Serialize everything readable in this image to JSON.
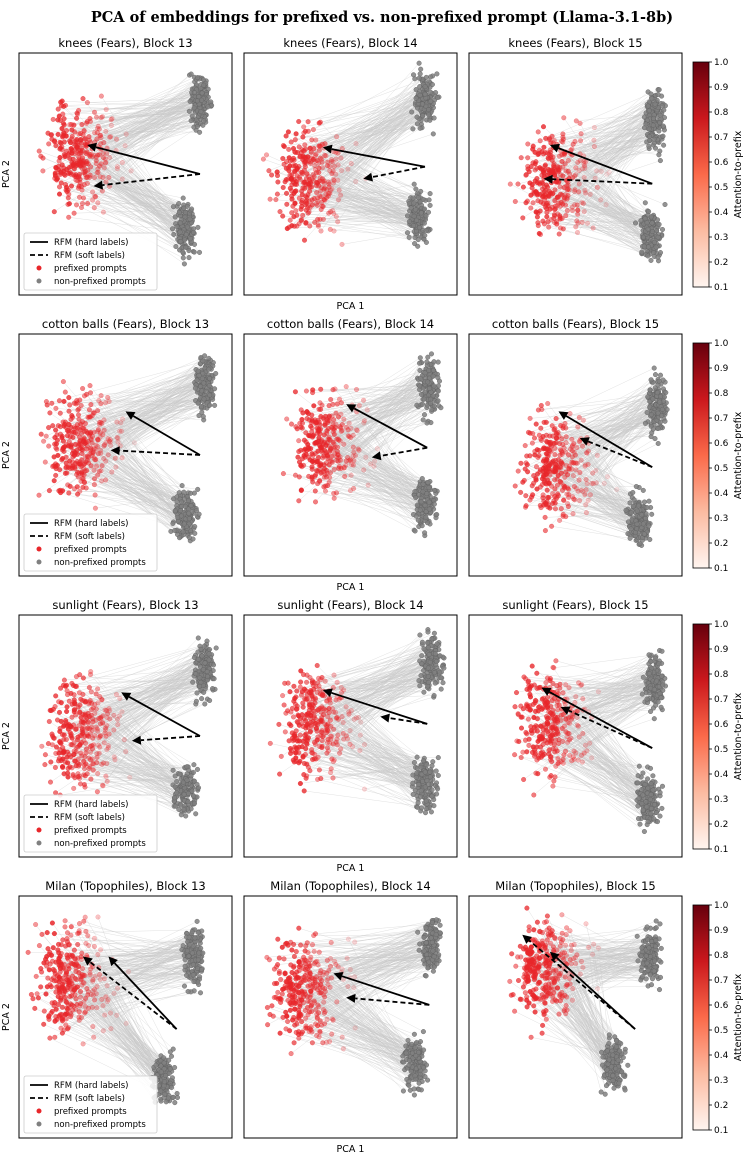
{
  "figure": {
    "title": "PCA of embeddings for prefixed vs. non-prefixed prompt (Llama-3.1-8b)"
  },
  "legend": {
    "hard_label": "RFM (hard labels)",
    "soft_label": "RFM (soft labels)",
    "prefixed_label": "prefixed prompts",
    "nonprefixed_label": "non-prefixed prompts"
  },
  "colorbar": {
    "label": "Attention-to-prefix",
    "ticks": [
      "0.1",
      "0.2",
      "0.3",
      "0.4",
      "0.5",
      "0.6",
      "0.7",
      "0.8",
      "0.9",
      "1.0"
    ],
    "range": [
      0.1,
      1.0
    ],
    "colors": [
      "#fff5f0",
      "#fcbba1",
      "#fb6a4a",
      "#cb181d",
      "#67000d"
    ]
  },
  "chart_data": [
    {
      "row": 0,
      "type": "scatter",
      "xlabel": "PCA 1",
      "ylabel": "PCA 2",
      "colors": {
        "prefixed": "#e8262a",
        "nonprefixed": "#808080",
        "pair_lines": "#c8c8c8",
        "arrows": "#000000"
      },
      "panels": [
        {
          "title": "knees (Fears), Block 13",
          "prefixed_center": [
            0.2,
            0.42
          ],
          "nonprefixed_upper": [
            0.85,
            0.2
          ],
          "nonprefixed_lower": [
            0.78,
            0.73
          ],
          "rfm_hard": {
            "from": [
              0.85,
              0.5
            ],
            "to": [
              0.32,
              0.38
            ]
          },
          "rfm_soft": {
            "from": [
              0.85,
              0.5
            ],
            "to": [
              0.35,
              0.55
            ]
          }
        },
        {
          "title": "knees (Fears), Block 14",
          "prefixed_center": [
            0.22,
            0.52
          ],
          "nonprefixed_upper": [
            0.85,
            0.2
          ],
          "nonprefixed_lower": [
            0.82,
            0.68
          ],
          "rfm_hard": {
            "from": [
              0.85,
              0.47
            ],
            "to": [
              0.37,
              0.39
            ]
          },
          "rfm_soft": {
            "from": [
              0.85,
              0.47
            ],
            "to": [
              0.56,
              0.52
            ]
          }
        },
        {
          "title": "knees (Fears), Block 15",
          "prefixed_center": [
            0.32,
            0.52
          ],
          "nonprefixed_upper": [
            0.87,
            0.28
          ],
          "nonprefixed_lower": [
            0.85,
            0.75
          ],
          "rfm_hard": {
            "from": [
              0.86,
              0.54
            ],
            "to": [
              0.38,
              0.38
            ]
          },
          "rfm_soft": {
            "from": [
              0.86,
              0.54
            ],
            "to": [
              0.35,
              0.52
            ]
          }
        }
      ]
    },
    {
      "row": 1,
      "type": "scatter",
      "xlabel": "PCA 1",
      "ylabel": "PCA 2",
      "colors": {
        "prefixed": "#e8262a",
        "nonprefixed": "#808080",
        "pair_lines": "#c8c8c8",
        "arrows": "#000000"
      },
      "panels": [
        {
          "title": "cotton balls (Fears), Block 13",
          "prefixed_center": [
            0.2,
            0.45
          ],
          "nonprefixed_upper": [
            0.87,
            0.22
          ],
          "nonprefixed_lower": [
            0.78,
            0.75
          ],
          "rfm_hard": {
            "from": [
              0.85,
              0.5
            ],
            "to": [
              0.5,
              0.32
            ]
          },
          "rfm_soft": {
            "from": [
              0.85,
              0.5
            ],
            "to": [
              0.43,
              0.48
            ]
          }
        },
        {
          "title": "cotton balls (Fears), Block 14",
          "prefixed_center": [
            0.3,
            0.45
          ],
          "nonprefixed_upper": [
            0.87,
            0.22
          ],
          "nonprefixed_lower": [
            0.85,
            0.7
          ],
          "rfm_hard": {
            "from": [
              0.86,
              0.47
            ],
            "to": [
              0.48,
              0.29
            ]
          },
          "rfm_soft": {
            "from": [
              0.86,
              0.47
            ],
            "to": [
              0.6,
              0.51
            ]
          }
        },
        {
          "title": "cotton balls (Fears), Block 15",
          "prefixed_center": [
            0.32,
            0.55
          ],
          "nonprefixed_upper": [
            0.88,
            0.3
          ],
          "nonprefixed_lower": [
            0.8,
            0.77
          ],
          "rfm_hard": {
            "from": [
              0.86,
              0.55
            ],
            "to": [
              0.42,
              0.32
            ]
          },
          "rfm_soft": {
            "from": [
              0.86,
              0.55
            ],
            "to": [
              0.52,
              0.43
            ]
          }
        }
      ]
    },
    {
      "row": 2,
      "type": "scatter",
      "xlabel": "PCA 1",
      "ylabel": "PCA 2",
      "colors": {
        "prefixed": "#e8262a",
        "nonprefixed": "#808080",
        "pair_lines": "#c8c8c8",
        "arrows": "#000000"
      },
      "panels": [
        {
          "title": "sunlight (Fears), Block 13",
          "prefixed_center": [
            0.2,
            0.48
          ],
          "nonprefixed_upper": [
            0.87,
            0.22
          ],
          "nonprefixed_lower": [
            0.78,
            0.72
          ],
          "rfm_hard": {
            "from": [
              0.85,
              0.5
            ],
            "to": [
              0.48,
              0.32
            ]
          },
          "rfm_soft": {
            "from": [
              0.85,
              0.5
            ],
            "to": [
              0.53,
              0.52
            ]
          }
        },
        {
          "title": "sunlight (Fears), Block 14",
          "prefixed_center": [
            0.25,
            0.45
          ],
          "nonprefixed_upper": [
            0.88,
            0.2
          ],
          "nonprefixed_lower": [
            0.85,
            0.7
          ],
          "rfm_hard": {
            "from": [
              0.86,
              0.45
            ],
            "to": [
              0.37,
              0.31
            ]
          },
          "rfm_soft": {
            "from": [
              0.86,
              0.45
            ],
            "to": [
              0.64,
              0.42
            ]
          }
        },
        {
          "title": "sunlight (Fears), Block 15",
          "prefixed_center": [
            0.3,
            0.45
          ],
          "nonprefixed_upper": [
            0.87,
            0.28
          ],
          "nonprefixed_lower": [
            0.84,
            0.76
          ],
          "rfm_hard": {
            "from": [
              0.86,
              0.55
            ],
            "to": [
              0.34,
              0.3
            ]
          },
          "rfm_soft": {
            "from": [
              0.86,
              0.55
            ],
            "to": [
              0.43,
              0.38
            ]
          }
        }
      ]
    },
    {
      "row": 3,
      "type": "scatter",
      "xlabel": "PCA 1",
      "ylabel": "PCA 2",
      "colors": {
        "prefixed": "#e8262a",
        "nonprefixed": "#808080",
        "pair_lines": "#c8c8c8",
        "arrows": "#000000"
      },
      "panels": [
        {
          "title": "Milan (Topophiles), Block 13",
          "prefixed_center": [
            0.15,
            0.35
          ],
          "nonprefixed_upper": [
            0.82,
            0.25
          ],
          "nonprefixed_lower": [
            0.68,
            0.75
          ],
          "rfm_hard": {
            "from": [
              0.74,
              0.55
            ],
            "to": [
              0.42,
              0.25
            ]
          },
          "rfm_soft": {
            "from": [
              0.74,
              0.55
            ],
            "to": [
              0.3,
              0.25
            ]
          }
        },
        {
          "title": "Milan (Topophiles), Block 14",
          "prefixed_center": [
            0.2,
            0.4
          ],
          "nonprefixed_upper": [
            0.88,
            0.2
          ],
          "nonprefixed_lower": [
            0.8,
            0.7
          ],
          "rfm_hard": {
            "from": [
              0.87,
              0.45
            ],
            "to": [
              0.42,
              0.32
            ]
          },
          "rfm_soft": {
            "from": [
              0.87,
              0.45
            ],
            "to": [
              0.48,
              0.42
            ]
          }
        },
        {
          "title": "Milan (Topophiles), Block 15",
          "prefixed_center": [
            0.28,
            0.3
          ],
          "nonprefixed_upper": [
            0.85,
            0.25
          ],
          "nonprefixed_lower": [
            0.68,
            0.7
          ],
          "rfm_hard": {
            "from": [
              0.78,
              0.55
            ],
            "to": [
              0.38,
              0.23
            ]
          },
          "rfm_soft": {
            "from": [
              0.78,
              0.55
            ],
            "to": [
              0.25,
              0.16
            ]
          }
        }
      ]
    }
  ]
}
